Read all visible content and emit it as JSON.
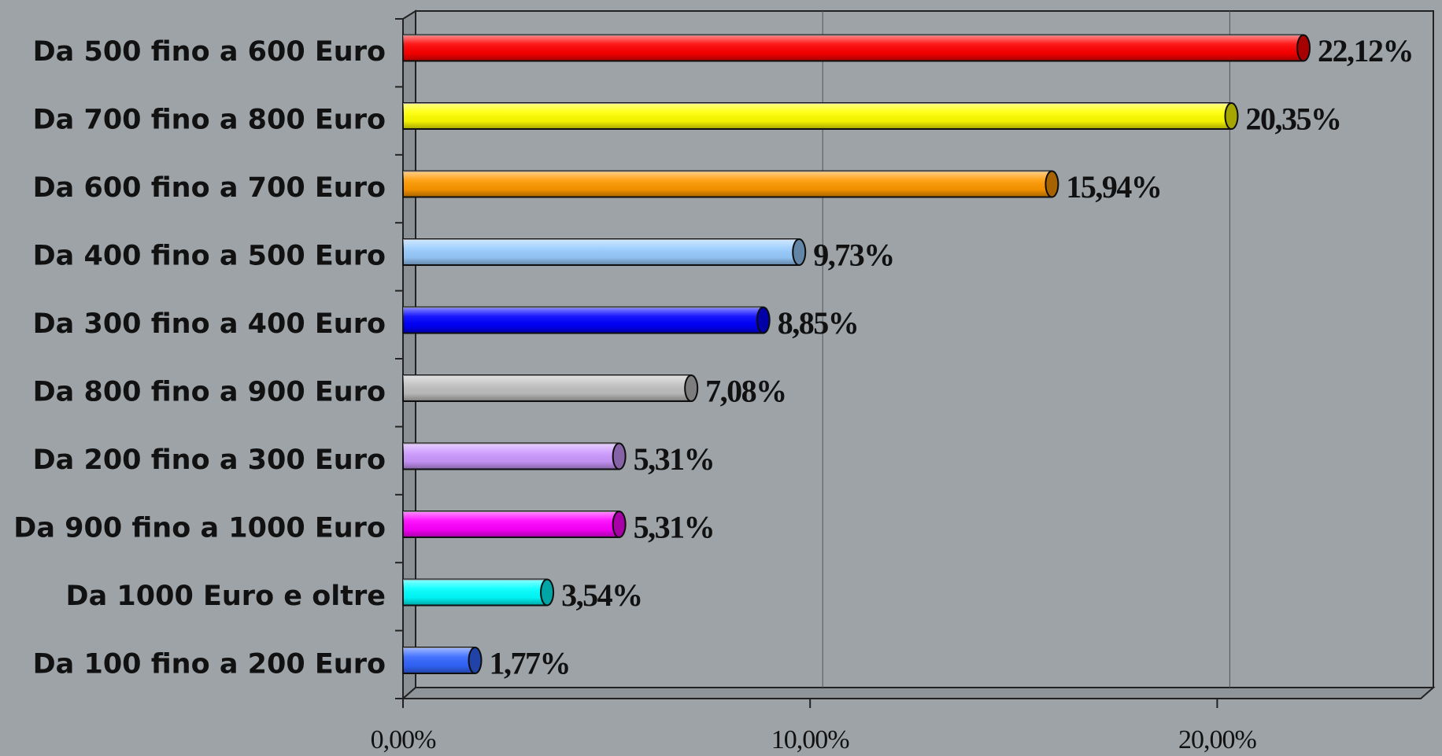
{
  "chart_data": {
    "type": "bar",
    "orientation": "horizontal",
    "categories": [
      "Da 500 fino a 600 Euro",
      "Da 700 fino a 800 Euro",
      "Da 600 fino a 700 Euro",
      "Da 400 fino a 500 Euro",
      "Da 300 fino a 400 Euro",
      "Da 800 fino a 900 Euro",
      "Da 200 fino a 300 Euro",
      "Da 900 fino a 1000 Euro",
      "Da 1000 Euro e oltre",
      "Da 100 fino a 200 Euro"
    ],
    "values": [
      22.12,
      20.35,
      15.94,
      9.73,
      8.85,
      7.08,
      5.31,
      5.31,
      3.54,
      1.77
    ],
    "value_labels": [
      "22,12%",
      "20,35%",
      "15,94%",
      "9,73%",
      "8,85%",
      "7,08%",
      "5,31%",
      "5,31%",
      "3,54%",
      "1,77%"
    ],
    "colors": [
      "#ff0000",
      "#ffff00",
      "#ff9900",
      "#99ccff",
      "#0000ff",
      "#c0c0c0",
      "#cc99ff",
      "#ff00ff",
      "#00ffff",
      "#3366ff"
    ],
    "xlim": [
      0,
      25
    ],
    "xticks": [
      {
        "value": 0,
        "label": "0,00%"
      },
      {
        "value": 10,
        "label": "10,00%"
      },
      {
        "value": 20,
        "label": "20,00%"
      }
    ],
    "grid": true
  }
}
